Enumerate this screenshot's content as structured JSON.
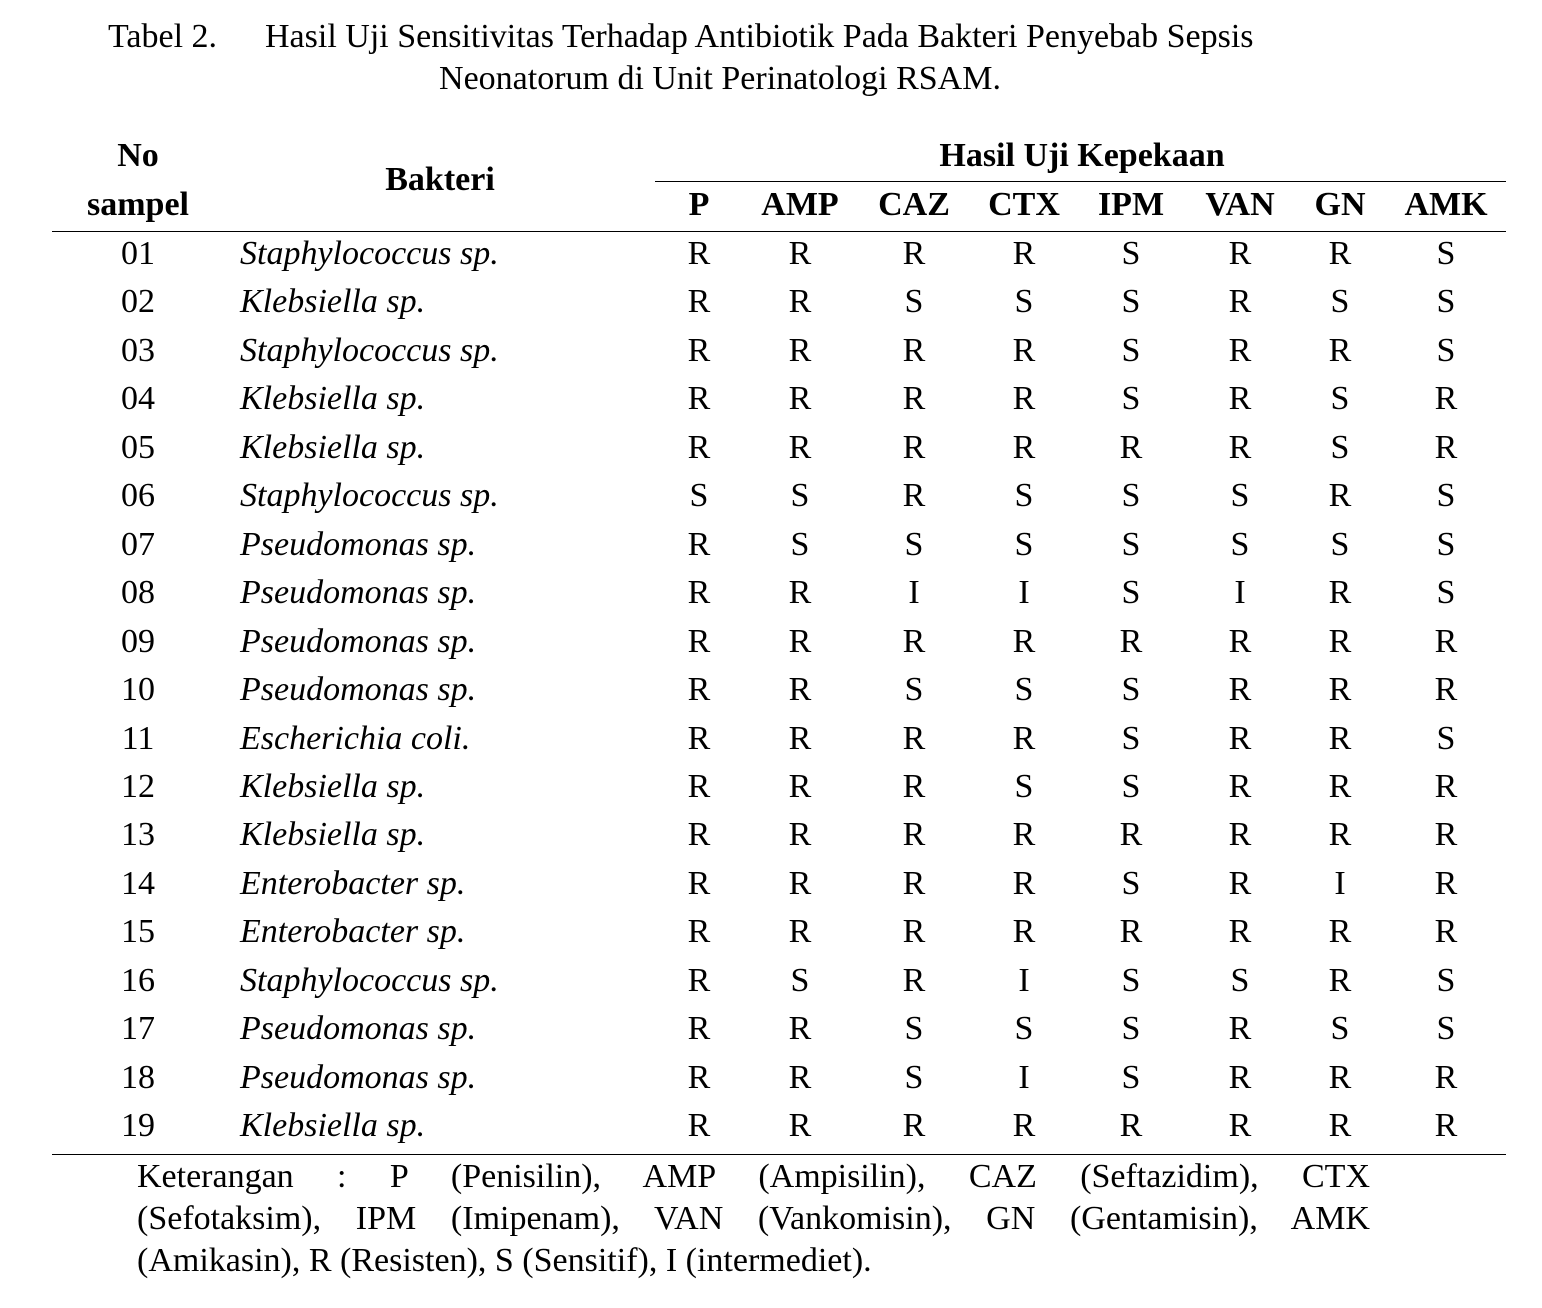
{
  "caption": {
    "label": "Tabel 2.",
    "lines": [
      "Hasil Uji Sensitivitas Terhadap Antibiotik Pada Bakteri Penyebab Sepsis",
      "Neonatorum di Unit Perinatologi RSAM."
    ]
  },
  "table": {
    "header": {
      "no": [
        "No",
        "sampel"
      ],
      "bacteria": "Bakteri",
      "group": "Hasil Uji Kepekaan",
      "columns": [
        "P",
        "AMP",
        "CAZ",
        "CTX",
        "IPM",
        "VAN",
        "GN",
        "AMK"
      ]
    },
    "rows": [
      [
        "01",
        "Staphylococcus sp.",
        "R",
        "R",
        "R",
        "R",
        "S",
        "R",
        "R",
        "S"
      ],
      [
        "02",
        "Klebsiella sp.",
        "R",
        "R",
        "S",
        "S",
        "S",
        "R",
        "S",
        "S"
      ],
      [
        "03",
        "Staphylococcus sp.",
        "R",
        "R",
        "R",
        "R",
        "S",
        "R",
        "R",
        "S"
      ],
      [
        "04",
        "Klebsiella sp.",
        "R",
        "R",
        "R",
        "R",
        "S",
        "R",
        "S",
        "R"
      ],
      [
        "05",
        "Klebsiella sp.",
        "R",
        "R",
        "R",
        "R",
        "R",
        "R",
        "S",
        "R"
      ],
      [
        "06",
        "Staphylococcus sp.",
        "S",
        "S",
        "R",
        "S",
        "S",
        "S",
        "R",
        "S"
      ],
      [
        "07",
        "Pseudomonas sp.",
        "R",
        "S",
        "S",
        "S",
        "S",
        "S",
        "S",
        "S"
      ],
      [
        "08",
        "Pseudomonas sp.",
        "R",
        "R",
        "I",
        "I",
        "S",
        "I",
        "R",
        "S"
      ],
      [
        "09",
        "Pseudomonas sp.",
        "R",
        "R",
        "R",
        "R",
        "R",
        "R",
        "R",
        "R"
      ],
      [
        "10",
        "Pseudomonas sp.",
        "R",
        "R",
        "S",
        "S",
        "S",
        "R",
        "R",
        "R"
      ],
      [
        "11",
        "Escherichia coli.",
        "R",
        "R",
        "R",
        "R",
        "S",
        "R",
        "R",
        "S"
      ],
      [
        "12",
        "Klebsiella sp.",
        "R",
        "R",
        "R",
        "S",
        "S",
        "R",
        "R",
        "R"
      ],
      [
        "13",
        "Klebsiella sp.",
        "R",
        "R",
        "R",
        "R",
        "R",
        "R",
        "R",
        "R"
      ],
      [
        "14",
        "Enterobacter sp.",
        "R",
        "R",
        "R",
        "R",
        "S",
        "R",
        "I",
        "R"
      ],
      [
        "15",
        "Enterobacter sp.",
        "R",
        "R",
        "R",
        "R",
        "R",
        "R",
        "R",
        "R"
      ],
      [
        "16",
        "Staphylococcus sp.",
        "R",
        "S",
        "R",
        "I",
        "S",
        "S",
        "R",
        "S"
      ],
      [
        "17",
        "Pseudomonas sp.",
        "R",
        "R",
        "S",
        "S",
        "S",
        "R",
        "S",
        "S"
      ],
      [
        "18",
        "Pseudomonas sp.",
        "R",
        "R",
        "S",
        "I",
        "S",
        "R",
        "R",
        "R"
      ],
      [
        "19",
        "Klebsiella sp.",
        "R",
        "R",
        "R",
        "R",
        "R",
        "R",
        "R",
        "R"
      ]
    ]
  },
  "note": {
    "lines": [
      "Keterangan : P (Penisilin), AMP (Ampisilin), CAZ (Seftazidim), CTX",
      "(Sefotaksim), IPM (Imipenam), VAN (Vankomisin), GN (Gentamisin), AMK",
      "(Amikasin), R (Resisten), S (Sensitif), I (intermediet)."
    ]
  }
}
